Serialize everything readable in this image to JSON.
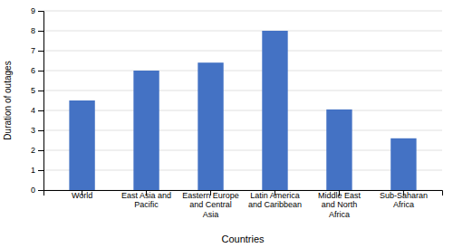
{
  "chart_data": {
    "type": "bar",
    "categories": [
      "World",
      "East Asia and\nPacific",
      "Eastern Europe\nand Central\nAsia",
      "Latin America\nand Caribbean",
      "Middle East\nand North\nAfrica",
      "Sub-Saharan\nAfrica"
    ],
    "values": [
      4.5,
      6.0,
      6.4,
      8.0,
      4.05,
      2.6
    ],
    "color": "#4472C4",
    "xlabel": "Countries",
    "ylabel": "Duration of outages",
    "ylim": [
      0,
      9
    ],
    "yticks": [
      0,
      1,
      2,
      3,
      4,
      5,
      6,
      7,
      8,
      9
    ],
    "grid": true
  }
}
